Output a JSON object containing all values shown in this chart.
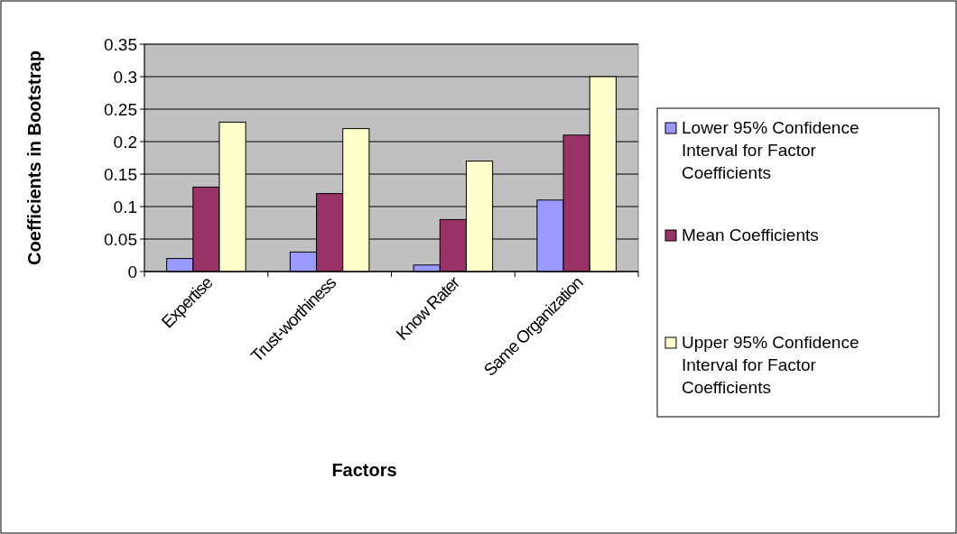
{
  "chart_data": {
    "type": "bar",
    "xlabel": "Factors",
    "ylabel": "Coefficients in Bootstrap",
    "categories": [
      "Expertise",
      "Trust-worthiness",
      "Know Rater",
      "Same Organization"
    ],
    "series": [
      {
        "name": "Lower 95% Confidence Interval for Factor Coefficients",
        "color": "#9999ff",
        "values": [
          0.02,
          0.03,
          0.01,
          0.11
        ]
      },
      {
        "name": "Mean Coefficients",
        "color": "#993366",
        "values": [
          0.13,
          0.12,
          0.08,
          0.21
        ]
      },
      {
        "name": "Upper 95% Confidence Interval for Factor Coefficients",
        "color": "#ffffcc",
        "values": [
          0.23,
          0.22,
          0.17,
          0.3
        ]
      }
    ],
    "ylim": [
      0,
      0.35
    ],
    "yticks": [
      0,
      0.05,
      0.1,
      0.15,
      0.2,
      0.25,
      0.3,
      0.35
    ],
    "grid": "y",
    "legend": "right"
  }
}
